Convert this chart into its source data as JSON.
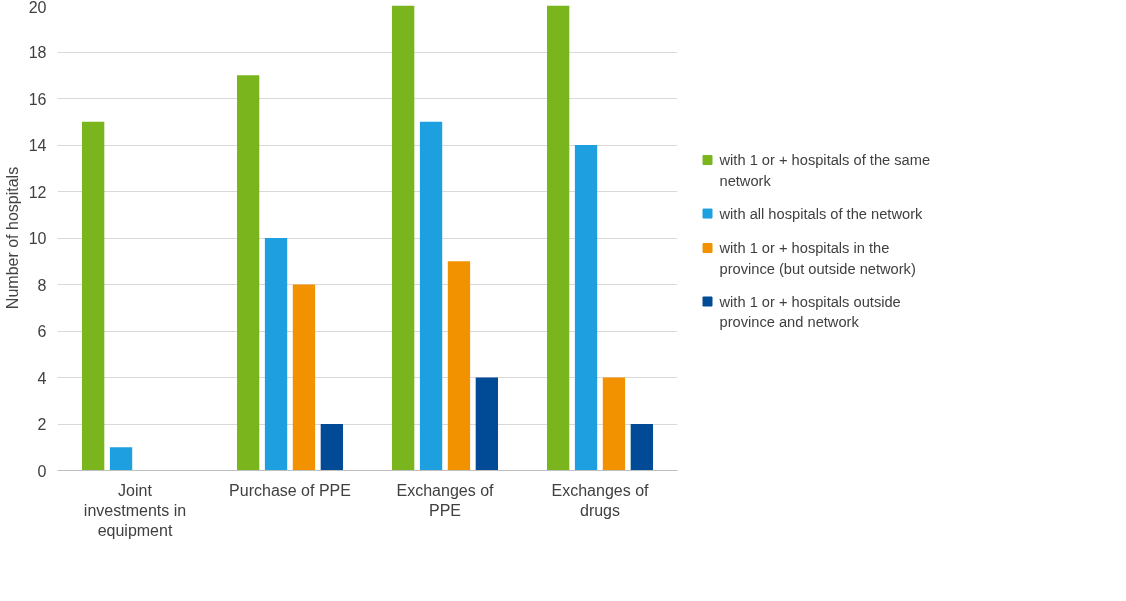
{
  "chart_data": {
    "type": "bar",
    "ylabel": "Number of hospitals",
    "categories": [
      "Joint investments in equipment",
      "Purchase of PPE",
      "Exchanges of PPE",
      "Exchanges of drugs"
    ],
    "series": [
      {
        "name": "with 1 or + hospitals of the same network",
        "color": "#7ab51d",
        "values": [
          15,
          17,
          20,
          20
        ]
      },
      {
        "name": "with all hospitals of the network",
        "color": "#1ea0e0",
        "values": [
          1,
          10,
          15,
          14
        ]
      },
      {
        "name": "with 1 or + hospitals in the province (but outside network)",
        "color": "#f39200",
        "values": [
          0,
          8,
          9,
          4
        ]
      },
      {
        "name": "with 1 or + hospitals outside province and network",
        "color": "#004a96",
        "values": [
          0,
          2,
          4,
          2
        ]
      }
    ],
    "ylim": [
      0,
      20
    ],
    "yticks": [
      0,
      2,
      4,
      6,
      8,
      10,
      12,
      14,
      16,
      18,
      20
    ],
    "grid": "y",
    "legend": "right"
  }
}
